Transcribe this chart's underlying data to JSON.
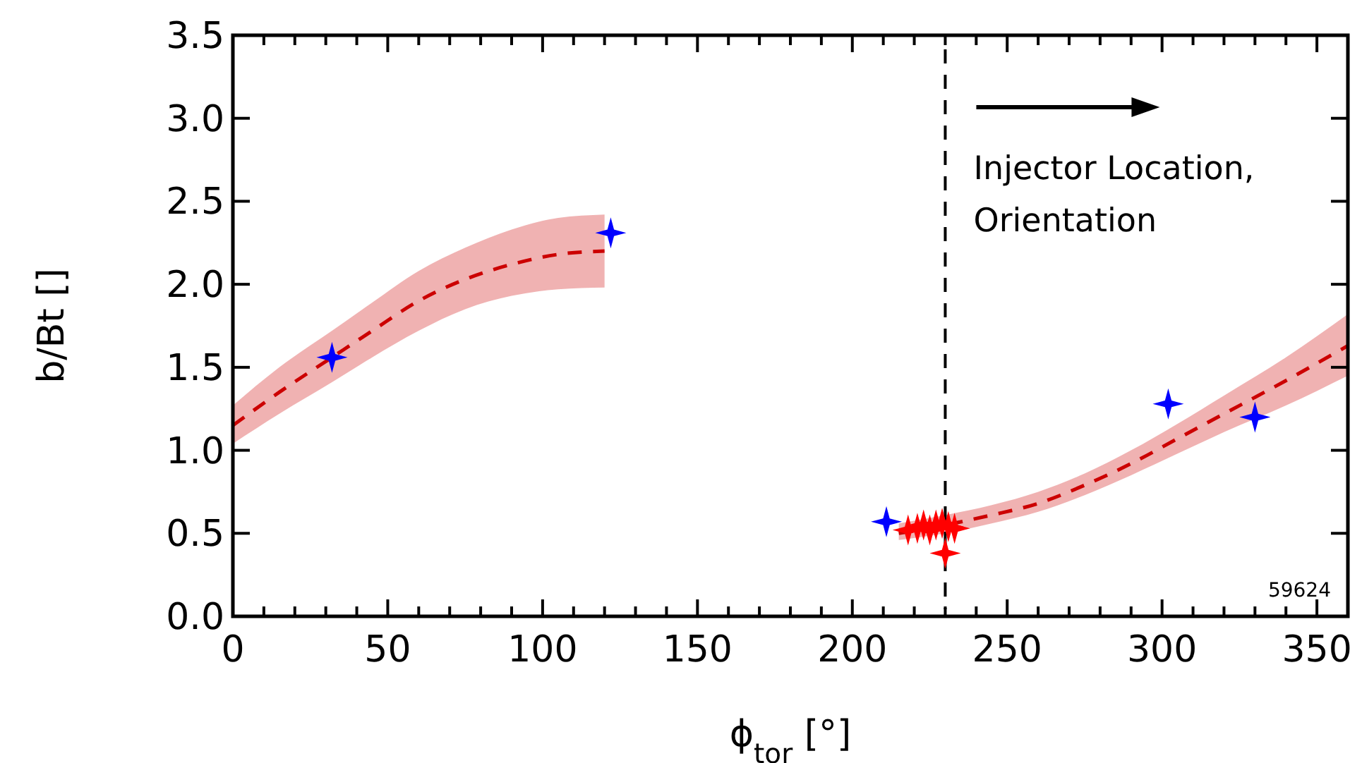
{
  "chart_data": {
    "type": "scatter",
    "xlabel": "ϕ$_{tor}$ [°]",
    "ylabel": "b/Bt []",
    "xlim": [
      0,
      360
    ],
    "ylim": [
      0,
      3.5
    ],
    "xticks": [
      0,
      {
        "value": 10,
        "label": null
      },
      {
        "value": 20,
        "label": null
      },
      {
        "value": 30,
        "label": null
      },
      {
        "value": 40,
        "label": null
      },
      50,
      {
        "value": 60,
        "label": null
      },
      {
        "value": 70,
        "label": null
      },
      {
        "value": 80,
        "label": null
      },
      {
        "value": 90,
        "label": null
      },
      100,
      {
        "value": 110,
        "label": null
      },
      {
        "value": 120,
        "label": null
      },
      {
        "value": 130,
        "label": null
      },
      {
        "value": 140,
        "label": null
      },
      150,
      {
        "value": 160,
        "label": null
      },
      {
        "value": 170,
        "label": null
      },
      {
        "value": 180,
        "label": null
      },
      {
        "value": 190,
        "label": null
      },
      200,
      {
        "value": 210,
        "label": null
      },
      {
        "value": 220,
        "label": null
      },
      {
        "value": 230,
        "label": null
      },
      {
        "value": 240,
        "label": null
      },
      250,
      {
        "value": 260,
        "label": null
      },
      {
        "value": 270,
        "label": null
      },
      {
        "value": 280,
        "label": null
      },
      {
        "value": 290,
        "label": null
      },
      300,
      {
        "value": 310,
        "label": null
      },
      {
        "value": 320,
        "label": null
      },
      {
        "value": 330,
        "label": null
      },
      {
        "value": 340,
        "label": null
      },
      350
    ],
    "yticks": [
      {
        "value": 0,
        "label": "0.0"
      },
      0.5,
      {
        "value": 1,
        "label": "1.0"
      },
      1.5,
      {
        "value": 2,
        "label": "2.0"
      },
      2.5,
      {
        "value": 3,
        "label": "3.0"
      },
      3.5
    ],
    "series": [
      {
        "type": "line",
        "color": "#cc0000",
        "line_style": "dashed",
        "marker": "none",
        "x": [
          0,
          15,
          32,
          45,
          60,
          75,
          90,
          105,
          120
        ],
        "values": [
          1.15,
          1.35,
          1.56,
          1.72,
          1.9,
          2.03,
          2.12,
          2.18,
          2.2
        ],
        "lower": [
          1.04,
          1.22,
          1.41,
          1.56,
          1.72,
          1.85,
          1.93,
          1.97,
          1.98
        ],
        "upper": [
          1.27,
          1.5,
          1.72,
          1.89,
          2.08,
          2.22,
          2.33,
          2.4,
          2.42
        ]
      },
      {
        "type": "line",
        "color": "#cc0000",
        "line_style": "dashed",
        "marker": "none",
        "x": [
          215,
          230,
          245,
          260,
          275,
          290,
          305,
          320,
          340,
          360
        ],
        "values": [
          0.5,
          0.55,
          0.61,
          0.68,
          0.79,
          0.92,
          1.07,
          1.22,
          1.42,
          1.63
        ],
        "lower": [
          0.46,
          0.5,
          0.56,
          0.63,
          0.73,
          0.85,
          0.98,
          1.11,
          1.27,
          1.45
        ],
        "upper": [
          0.56,
          0.61,
          0.67,
          0.75,
          0.86,
          1.0,
          1.16,
          1.33,
          1.56,
          1.82
        ]
      },
      {
        "color": "#0000ff",
        "marker": "star",
        "x": [
          32,
          122,
          211,
          302,
          330
        ],
        "values": [
          1.56,
          2.31,
          0.57,
          1.28,
          1.2
        ]
      },
      {
        "color": "#ff0000",
        "marker": "star",
        "x": [
          218,
          221,
          223,
          225,
          227,
          229,
          231,
          233,
          230
        ],
        "values": [
          0.52,
          0.53,
          0.55,
          0.52,
          0.55,
          0.56,
          0.54,
          0.53,
          0.38
        ]
      }
    ],
    "ref_lines": [
      {
        "axis": "x",
        "value": 230,
        "color": "#000000",
        "line_style": "dashed"
      }
    ],
    "annotations": [
      "Injector Location, Orientation",
      "59624"
    ]
  }
}
